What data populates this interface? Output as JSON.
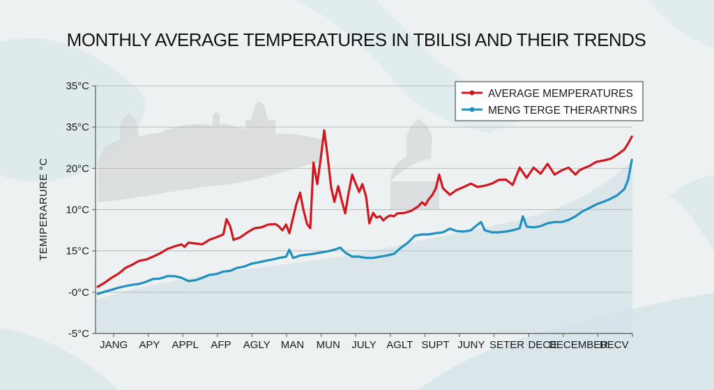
{
  "chart_data": {
    "type": "line",
    "title": "MONTHLY AVERAGE TEMPERATURES IN TBILISI AND THEIR TRENDS",
    "xlabel": "",
    "ylabel": "TEMIPERARURE °C",
    "y_ticks": [
      "-5°C",
      "-0°C",
      "15°C",
      "10°C",
      "20°C",
      "35°C",
      "35°C"
    ],
    "y_axis_note": "Tick labels are shown as printed (non-monotonic); values below are in tick-index units where 0 = bottom tick (-5°C) and 6 = top tick (35°C).",
    "ylim": [
      0,
      6
    ],
    "x_ticks": [
      "JANG",
      "APY",
      "APPL",
      "AFP",
      "AGLY",
      "MAN",
      "MUN",
      "JULY",
      "AGLT",
      "SUPT",
      "JUNY",
      "SETER",
      "DECE",
      "DECEMBER",
      "DECV"
    ],
    "x_axis_note": "x values are fractional positions along the time axis from 0 (start) to 1 (end, at DECV).",
    "xlim": [
      0,
      1
    ],
    "grid": "horizontal",
    "legend_position": "top-right",
    "series": [
      {
        "name": "AVERAGE MEMPERATURES",
        "color": "#d0171f",
        "points": [
          [
            0.004,
            1.13
          ],
          [
            0.017,
            1.23
          ],
          [
            0.03,
            1.35
          ],
          [
            0.043,
            1.45
          ],
          [
            0.056,
            1.59
          ],
          [
            0.069,
            1.67
          ],
          [
            0.081,
            1.76
          ],
          [
            0.094,
            1.79
          ],
          [
            0.107,
            1.86
          ],
          [
            0.12,
            1.94
          ],
          [
            0.134,
            2.05
          ],
          [
            0.147,
            2.11
          ],
          [
            0.16,
            2.16
          ],
          [
            0.166,
            2.1
          ],
          [
            0.173,
            2.2
          ],
          [
            0.186,
            2.18
          ],
          [
            0.199,
            2.16
          ],
          [
            0.212,
            2.27
          ],
          [
            0.225,
            2.33
          ],
          [
            0.238,
            2.4
          ],
          [
            0.244,
            2.77
          ],
          [
            0.251,
            2.59
          ],
          [
            0.257,
            2.27
          ],
          [
            0.27,
            2.33
          ],
          [
            0.283,
            2.45
          ],
          [
            0.296,
            2.55
          ],
          [
            0.309,
            2.57
          ],
          [
            0.322,
            2.64
          ],
          [
            0.335,
            2.65
          ],
          [
            0.341,
            2.6
          ],
          [
            0.348,
            2.5
          ],
          [
            0.355,
            2.64
          ],
          [
            0.361,
            2.43
          ],
          [
            0.374,
            3.13
          ],
          [
            0.381,
            3.41
          ],
          [
            0.387,
            3.01
          ],
          [
            0.394,
            2.65
          ],
          [
            0.4,
            2.55
          ],
          [
            0.406,
            4.14
          ],
          [
            0.413,
            3.62
          ],
          [
            0.419,
            4.19
          ],
          [
            0.426,
            4.92
          ],
          [
            0.432,
            4.33
          ],
          [
            0.439,
            3.53
          ],
          [
            0.445,
            3.19
          ],
          [
            0.452,
            3.57
          ],
          [
            0.458,
            3.25
          ],
          [
            0.465,
            2.91
          ],
          [
            0.471,
            3.38
          ],
          [
            0.478,
            3.85
          ],
          [
            0.484,
            3.65
          ],
          [
            0.491,
            3.43
          ],
          [
            0.497,
            3.62
          ],
          [
            0.504,
            3.31
          ],
          [
            0.51,
            2.67
          ],
          [
            0.517,
            2.92
          ],
          [
            0.523,
            2.81
          ],
          [
            0.53,
            2.84
          ],
          [
            0.536,
            2.74
          ],
          [
            0.543,
            2.82
          ],
          [
            0.549,
            2.86
          ],
          [
            0.556,
            2.84
          ],
          [
            0.562,
            2.91
          ],
          [
            0.575,
            2.92
          ],
          [
            0.588,
            2.97
          ],
          [
            0.601,
            3.08
          ],
          [
            0.608,
            3.18
          ],
          [
            0.614,
            3.11
          ],
          [
            0.621,
            3.26
          ],
          [
            0.627,
            3.35
          ],
          [
            0.634,
            3.52
          ],
          [
            0.64,
            3.85
          ],
          [
            0.647,
            3.52
          ],
          [
            0.66,
            3.36
          ],
          [
            0.673,
            3.48
          ],
          [
            0.686,
            3.55
          ],
          [
            0.699,
            3.63
          ],
          [
            0.712,
            3.55
          ],
          [
            0.725,
            3.58
          ],
          [
            0.738,
            3.63
          ],
          [
            0.751,
            3.72
          ],
          [
            0.764,
            3.73
          ],
          [
            0.777,
            3.6
          ],
          [
            0.79,
            4.02
          ],
          [
            0.803,
            3.77
          ],
          [
            0.816,
            4.02
          ],
          [
            0.829,
            3.87
          ],
          [
            0.842,
            4.11
          ],
          [
            0.855,
            3.85
          ],
          [
            0.868,
            3.95
          ],
          [
            0.881,
            4.02
          ],
          [
            0.894,
            3.85
          ],
          [
            0.901,
            3.95
          ],
          [
            0.907,
            3.99
          ],
          [
            0.92,
            4.06
          ],
          [
            0.933,
            4.16
          ],
          [
            0.946,
            4.19
          ],
          [
            0.959,
            4.23
          ],
          [
            0.972,
            4.33
          ],
          [
            0.985,
            4.46
          ],
          [
            0.992,
            4.6
          ],
          [
            0.999,
            4.77
          ]
        ]
      },
      {
        "name": "MENG TERGE THERARTNRS",
        "color": "#1f8fbf",
        "points": [
          [
            0.004,
            0.96
          ],
          [
            0.017,
            1.01
          ],
          [
            0.03,
            1.06
          ],
          [
            0.043,
            1.11
          ],
          [
            0.056,
            1.15
          ],
          [
            0.069,
            1.18
          ],
          [
            0.081,
            1.2
          ],
          [
            0.094,
            1.25
          ],
          [
            0.107,
            1.32
          ],
          [
            0.12,
            1.33
          ],
          [
            0.134,
            1.39
          ],
          [
            0.147,
            1.39
          ],
          [
            0.16,
            1.35
          ],
          [
            0.173,
            1.27
          ],
          [
            0.186,
            1.29
          ],
          [
            0.199,
            1.35
          ],
          [
            0.212,
            1.42
          ],
          [
            0.225,
            1.44
          ],
          [
            0.238,
            1.5
          ],
          [
            0.251,
            1.52
          ],
          [
            0.264,
            1.59
          ],
          [
            0.277,
            1.62
          ],
          [
            0.29,
            1.69
          ],
          [
            0.303,
            1.72
          ],
          [
            0.316,
            1.76
          ],
          [
            0.329,
            1.79
          ],
          [
            0.342,
            1.83
          ],
          [
            0.355,
            1.86
          ],
          [
            0.361,
            2.03
          ],
          [
            0.368,
            1.83
          ],
          [
            0.381,
            1.89
          ],
          [
            0.394,
            1.91
          ],
          [
            0.406,
            1.93
          ],
          [
            0.419,
            1.96
          ],
          [
            0.432,
            1.99
          ],
          [
            0.445,
            2.03
          ],
          [
            0.456,
            2.08
          ],
          [
            0.465,
            1.96
          ],
          [
            0.478,
            1.86
          ],
          [
            0.491,
            1.86
          ],
          [
            0.504,
            1.83
          ],
          [
            0.517,
            1.83
          ],
          [
            0.53,
            1.86
          ],
          [
            0.543,
            1.89
          ],
          [
            0.556,
            1.93
          ],
          [
            0.569,
            2.08
          ],
          [
            0.582,
            2.2
          ],
          [
            0.595,
            2.37
          ],
          [
            0.608,
            2.4
          ],
          [
            0.621,
            2.4
          ],
          [
            0.634,
            2.43
          ],
          [
            0.647,
            2.45
          ],
          [
            0.66,
            2.54
          ],
          [
            0.673,
            2.48
          ],
          [
            0.686,
            2.47
          ],
          [
            0.699,
            2.5
          ],
          [
            0.712,
            2.64
          ],
          [
            0.718,
            2.7
          ],
          [
            0.725,
            2.5
          ],
          [
            0.738,
            2.45
          ],
          [
            0.751,
            2.45
          ],
          [
            0.764,
            2.47
          ],
          [
            0.777,
            2.5
          ],
          [
            0.79,
            2.55
          ],
          [
            0.796,
            2.84
          ],
          [
            0.803,
            2.59
          ],
          [
            0.816,
            2.57
          ],
          [
            0.829,
            2.6
          ],
          [
            0.842,
            2.67
          ],
          [
            0.855,
            2.7
          ],
          [
            0.868,
            2.7
          ],
          [
            0.881,
            2.75
          ],
          [
            0.894,
            2.84
          ],
          [
            0.907,
            2.96
          ],
          [
            0.92,
            3.04
          ],
          [
            0.933,
            3.13
          ],
          [
            0.946,
            3.19
          ],
          [
            0.959,
            3.26
          ],
          [
            0.972,
            3.35
          ],
          [
            0.985,
            3.5
          ],
          [
            0.992,
            3.72
          ],
          [
            0.999,
            4.21
          ]
        ]
      }
    ]
  }
}
